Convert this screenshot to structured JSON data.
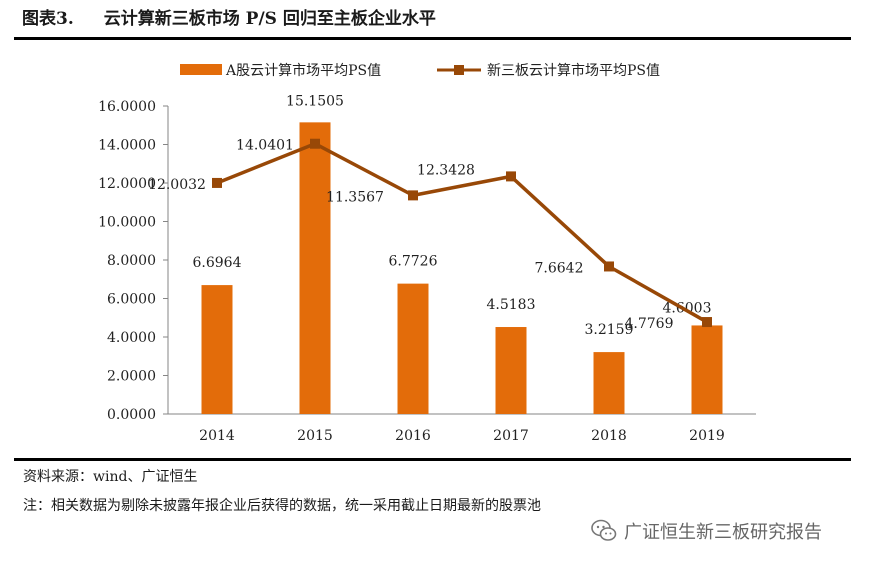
{
  "figure": {
    "number": "图表3.",
    "title": "云计算新三板市场 P/S 回归至主板企业水平"
  },
  "chart_data": {
    "type": "bar+line",
    "categories": [
      "2014",
      "2015",
      "2016",
      "2017",
      "2018",
      "2019"
    ],
    "series": [
      {
        "name": "A股云计算市场平均PS值",
        "kind": "bar",
        "values": [
          6.6964,
          15.1505,
          6.7726,
          4.5183,
          3.2159,
          4.6003
        ],
        "labels": [
          "6.6964",
          "15.1505",
          "6.7726",
          "4.5183",
          "3.2159",
          "4.6003"
        ]
      },
      {
        "name": "新三板云计算市场平均PS值",
        "kind": "line",
        "values": [
          12.0032,
          14.0401,
          11.3567,
          12.3428,
          7.6642,
          4.7769
        ],
        "labels": [
          "12.0032",
          "14.0401",
          "11.3567",
          "12.3428",
          "7.6642",
          "4.7769"
        ]
      }
    ],
    "ylim": [
      0,
      16
    ],
    "yticks": [
      "0.0000",
      "2.0000",
      "4.0000",
      "6.0000",
      "8.0000",
      "10.0000",
      "12.0000",
      "14.0000",
      "16.0000"
    ],
    "legend": "top",
    "grid": false,
    "colors": {
      "bar": "#E36C0A",
      "line": "#984807",
      "axis": "#868686"
    }
  },
  "source": "资料来源：wind、广证恒生",
  "note": "注：相关数据为剔除未披露年报企业后获得的数据，统一采用截止日期最新的股票池",
  "watermark": {
    "text": "广证恒生新三板研究报告",
    "icon": "wechat-icon"
  }
}
